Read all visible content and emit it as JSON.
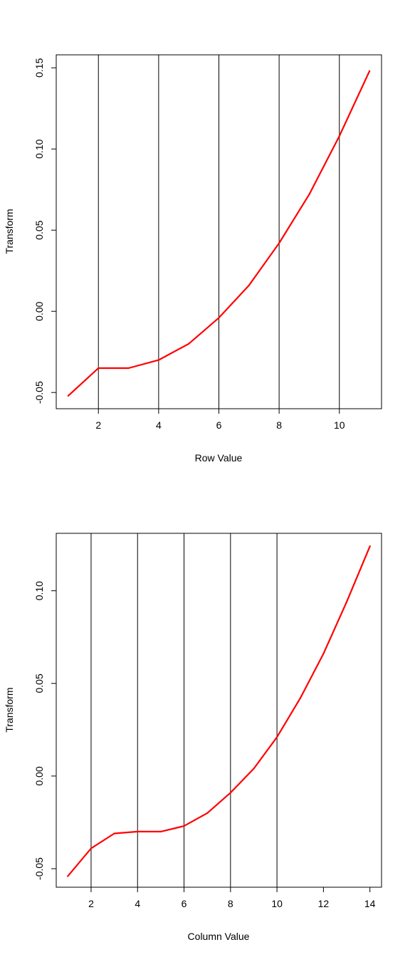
{
  "chart_data": [
    {
      "type": "line",
      "title": "",
      "xlabel": "Row Value",
      "ylabel": "Transform",
      "xlim": [
        0.6,
        11.4
      ],
      "ylim": [
        -0.06,
        0.158
      ],
      "xticks": [
        2,
        4,
        6,
        8,
        10
      ],
      "yticks": [
        -0.05,
        0.0,
        0.05,
        0.1,
        0.15
      ],
      "ytick_labels": [
        "-0.05",
        "0.00",
        "0.05",
        "0.10",
        "0.15"
      ],
      "vlines": [
        2,
        4,
        6,
        8,
        10
      ],
      "line_color": "#ff0000",
      "grid": false,
      "x": [
        1,
        2,
        3,
        4,
        5,
        6,
        7,
        8,
        9,
        10,
        11
      ],
      "y": [
        -0.052,
        -0.035,
        -0.035,
        -0.03,
        -0.02,
        -0.004,
        0.016,
        0.042,
        0.072,
        0.108,
        0.148
      ]
    },
    {
      "type": "line",
      "title": "",
      "xlabel": "Column Value",
      "ylabel": "Transform",
      "xlim": [
        0.5,
        14.5
      ],
      "ylim": [
        -0.06,
        0.131
      ],
      "xticks": [
        2,
        4,
        6,
        8,
        10,
        12,
        14
      ],
      "yticks": [
        -0.05,
        0.0,
        0.05,
        0.1
      ],
      "ytick_labels": [
        "-0.05",
        "0.00",
        "0.05",
        "0.10"
      ],
      "vlines": [
        2,
        4,
        6,
        8,
        10
      ],
      "line_color": "#ff0000",
      "grid": false,
      "x": [
        1,
        2,
        3,
        4,
        5,
        6,
        7,
        8,
        9,
        10,
        11,
        12,
        13,
        14
      ],
      "y": [
        -0.054,
        -0.039,
        -0.031,
        -0.03,
        -0.03,
        -0.027,
        -0.02,
        -0.009,
        0.004,
        0.021,
        0.042,
        0.066,
        0.094,
        0.124
      ]
    }
  ]
}
